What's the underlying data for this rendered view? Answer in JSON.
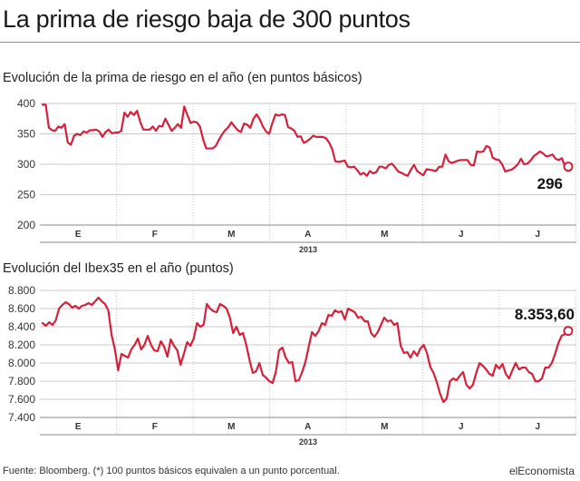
{
  "header": {
    "title": "La prima de riesgo baja de 300 puntos"
  },
  "footer": {
    "source": "Fuente: Bloomberg. (*) 100 puntos básicos equivalen a un punto porcentual.",
    "brand": "elEconomista"
  },
  "colors": {
    "series": "#d6203a",
    "grid": "#c8c8c8"
  },
  "chart_data": [
    {
      "type": "line",
      "title": "Evolución de la prima de riesgo en el año (en puntos básicos)",
      "xlabel": "2013",
      "ylabel": "",
      "ylim": [
        200,
        400
      ],
      "yticks": [
        200,
        250,
        300,
        350,
        400
      ],
      "ytick_labels": [
        "200",
        "250",
        "300",
        "350",
        "400"
      ],
      "months": [
        "E",
        "F",
        "M",
        "A",
        "M",
        "J",
        "J"
      ],
      "grid": true,
      "last_value_label": "296",
      "series": [
        {
          "values": [
            398,
            398,
            360,
            356,
            355,
            362,
            360,
            366,
            336,
            332,
            347,
            350,
            348,
            354,
            352,
            356,
            356,
            357,
            354,
            345,
            353,
            357,
            351,
            352,
            352,
            355,
            385,
            378,
            386,
            381,
            388,
            370,
            357,
            357,
            357,
            362,
            355,
            363,
            362,
            375,
            365,
            355,
            360,
            366,
            360,
            395,
            381,
            368,
            370,
            369,
            362,
            341,
            326,
            326,
            326,
            330,
            340,
            349,
            356,
            361,
            369,
            362,
            356,
            353,
            367,
            365,
            360,
            375,
            382,
            374,
            362,
            354,
            350,
            368,
            382,
            380,
            382,
            381,
            361,
            359,
            355,
            345,
            346,
            335,
            338,
            342,
            347,
            345,
            345,
            345,
            343,
            336,
            325,
            305,
            304,
            305,
            306,
            296,
            295,
            296,
            290,
            283,
            286,
            281,
            289,
            285,
            287,
            296,
            296,
            293,
            299,
            301,
            295,
            288,
            286,
            283,
            281,
            291,
            299,
            289,
            285,
            282,
            292,
            291,
            290,
            289,
            296,
            296,
            316,
            305,
            302,
            304,
            306,
            307,
            307,
            307,
            299,
            298,
            321,
            320,
            321,
            330,
            328,
            311,
            308,
            307,
            300,
            288,
            290,
            291,
            295,
            300,
            309,
            300,
            301,
            306,
            313,
            317,
            321,
            318,
            313,
            314,
            316,
            309,
            307,
            310,
            296,
            296
          ]
        }
      ]
    },
    {
      "type": "line",
      "title": "Evolución del Ibex35 en el año (puntos)",
      "xlabel": "2013",
      "ylabel": "",
      "ylim": [
        7400,
        8800
      ],
      "yticks": [
        7400,
        7600,
        7800,
        8000,
        8200,
        8400,
        8600,
        8800
      ],
      "ytick_labels": [
        "7.400",
        "7.600",
        "7.800",
        "8.000",
        "8.200",
        "8.400",
        "8.600",
        "8.800"
      ],
      "months": [
        "E",
        "F",
        "M",
        "A",
        "M",
        "J",
        "J"
      ],
      "grid": true,
      "last_value_label": "8.353,60",
      "series": [
        {
          "values": [
            8440,
            8410,
            8450,
            8420,
            8470,
            8600,
            8640,
            8670,
            8650,
            8610,
            8630,
            8600,
            8630,
            8640,
            8660,
            8640,
            8680,
            8720,
            8680,
            8650,
            8580,
            8310,
            8150,
            7920,
            8100,
            8080,
            8060,
            8150,
            8200,
            8270,
            8150,
            8200,
            8300,
            8200,
            8140,
            8130,
            8240,
            8180,
            8070,
            8260,
            8190,
            8140,
            7980,
            8100,
            8230,
            8190,
            8270,
            8440,
            8400,
            8420,
            8650,
            8600,
            8570,
            8560,
            8650,
            8630,
            8600,
            8500,
            8330,
            8400,
            8310,
            8330,
            8200,
            8030,
            7890,
            7910,
            8000,
            7870,
            7840,
            7800,
            7780,
            7900,
            8140,
            8170,
            8060,
            8000,
            8010,
            7800,
            7810,
            7900,
            8010,
            8180,
            8340,
            8300,
            8350,
            8440,
            8420,
            8530,
            8520,
            8580,
            8560,
            8570,
            8480,
            8600,
            8580,
            8560,
            8500,
            8510,
            8460,
            8460,
            8330,
            8290,
            8340,
            8420,
            8500,
            8460,
            8470,
            8420,
            8440,
            8190,
            8110,
            8120,
            8060,
            8130,
            8080,
            8160,
            8200,
            8110,
            7960,
            7890,
            7790,
            7660,
            7570,
            7610,
            7800,
            7830,
            7810,
            7860,
            7900,
            7760,
            7720,
            7760,
            7890,
            8000,
            7970,
            7930,
            7880,
            7860,
            7980,
            7940,
            7990,
            7880,
            7830,
            7920,
            8000,
            7930,
            7950,
            7950,
            7900,
            7880,
            7800,
            7800,
            7830,
            7950,
            7950,
            8000,
            8100,
            8220,
            8300,
            8320,
            8353.6
          ]
        }
      ]
    }
  ]
}
